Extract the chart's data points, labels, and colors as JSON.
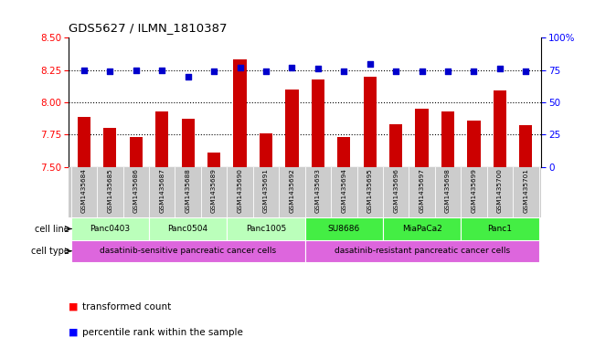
{
  "title": "GDS5627 / ILMN_1810387",
  "samples": [
    "GSM1435684",
    "GSM1435685",
    "GSM1435686",
    "GSM1435687",
    "GSM1435688",
    "GSM1435689",
    "GSM1435690",
    "GSM1435691",
    "GSM1435692",
    "GSM1435693",
    "GSM1435694",
    "GSM1435695",
    "GSM1435696",
    "GSM1435697",
    "GSM1435698",
    "GSM1435699",
    "GSM1435700",
    "GSM1435701"
  ],
  "bar_values": [
    7.89,
    7.8,
    7.73,
    7.93,
    7.87,
    7.61,
    8.33,
    7.76,
    8.1,
    8.18,
    7.73,
    8.2,
    7.83,
    7.95,
    7.93,
    7.86,
    8.09,
    7.82
  ],
  "dot_values": [
    75,
    74,
    75,
    75,
    70,
    74,
    77,
    74,
    77,
    76,
    74,
    80,
    74,
    74,
    74,
    74,
    76,
    74
  ],
  "ylim_left": [
    7.5,
    8.5
  ],
  "ylim_right": [
    0,
    100
  ],
  "yticks_left": [
    7.5,
    7.75,
    8.0,
    8.25,
    8.5
  ],
  "yticks_right": [
    0,
    25,
    50,
    75,
    100
  ],
  "bar_color": "#cc0000",
  "dot_color": "#0000cc",
  "cell_lines": [
    {
      "label": "Panc0403",
      "start": 0,
      "end": 3,
      "color": "#bbffbb"
    },
    {
      "label": "Panc0504",
      "start": 3,
      "end": 6,
      "color": "#bbffbb"
    },
    {
      "label": "Panc1005",
      "start": 6,
      "end": 9,
      "color": "#bbffbb"
    },
    {
      "label": "SU8686",
      "start": 9,
      "end": 12,
      "color": "#44ee44"
    },
    {
      "label": "MiaPaCa2",
      "start": 12,
      "end": 15,
      "color": "#44ee44"
    },
    {
      "label": "Panc1",
      "start": 15,
      "end": 18,
      "color": "#44ee44"
    }
  ],
  "cell_types": [
    {
      "label": "dasatinib-sensitive pancreatic cancer cells",
      "start": 0,
      "end": 9,
      "color": "#dd66dd"
    },
    {
      "label": "dasatinib-resistant pancreatic cancer cells",
      "start": 9,
      "end": 18,
      "color": "#dd66dd"
    }
  ],
  "bg_color": "#ffffff",
  "label_bg_color": "#cccccc"
}
